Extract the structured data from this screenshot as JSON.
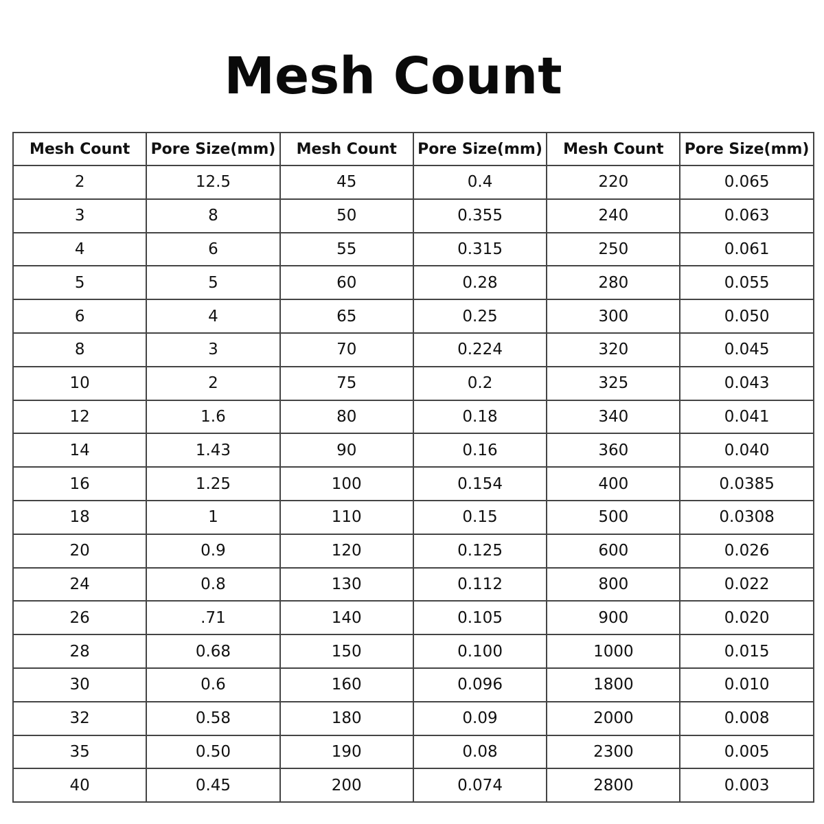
{
  "title": "Mesh Count",
  "table": {
    "headers": [
      "Mesh Count",
      "Pore Size(mm)",
      "Mesh Count",
      "Pore Size(mm)",
      "Mesh Count",
      "Pore Size(mm)"
    ],
    "rows": [
      [
        "2",
        "12.5",
        "45",
        "0.4",
        "220",
        "0.065"
      ],
      [
        "3",
        "8",
        "50",
        "0.355",
        "240",
        "0.063"
      ],
      [
        "4",
        "6",
        "55",
        "0.315",
        "250",
        "0.061"
      ],
      [
        "5",
        "5",
        "60",
        "0.28",
        "280",
        "0.055"
      ],
      [
        "6",
        "4",
        "65",
        "0.25",
        "300",
        "0.050"
      ],
      [
        "8",
        "3",
        "70",
        "0.224",
        "320",
        "0.045"
      ],
      [
        "10",
        "2",
        "75",
        "0.2",
        "325",
        "0.043"
      ],
      [
        "12",
        "1.6",
        "80",
        "0.18",
        "340",
        "0.041"
      ],
      [
        "14",
        "1.43",
        "90",
        "0.16",
        "360",
        "0.040"
      ],
      [
        "16",
        "1.25",
        "100",
        "0.154",
        "400",
        "0.0385"
      ],
      [
        "18",
        "1",
        "110",
        "0.15",
        "500",
        "0.0308"
      ],
      [
        "20",
        "0.9",
        "120",
        "0.125",
        "600",
        "0.026"
      ],
      [
        "24",
        "0.8",
        "130",
        "0.112",
        "800",
        "0.022"
      ],
      [
        "26",
        ".71",
        "140",
        "0.105",
        "900",
        "0.020"
      ],
      [
        "28",
        "0.68",
        "150",
        "0.100",
        "1000",
        "0.015"
      ],
      [
        "30",
        "0.6",
        "160",
        "0.096",
        "1800",
        "0.010"
      ],
      [
        "32",
        "0.58",
        "180",
        "0.09",
        "2000",
        "0.008"
      ],
      [
        "35",
        "0.50",
        "190",
        "0.08",
        "2300",
        "0.005"
      ],
      [
        "40",
        "0.45",
        "200",
        "0.074",
        "2800",
        "0.003"
      ]
    ]
  }
}
